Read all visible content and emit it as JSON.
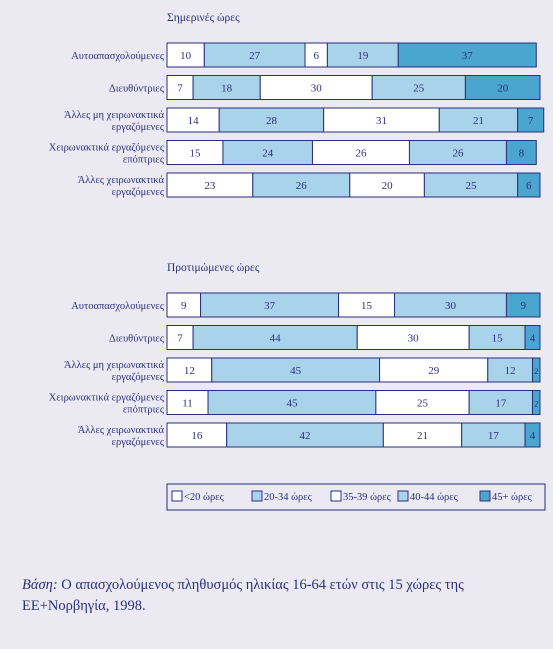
{
  "chart_data": [
    {
      "type": "bar",
      "stacked": true,
      "orientation": "horizontal",
      "title": "Σημερινές ώρες",
      "categories": [
        "Αυτοαπασχολούμενες",
        "Διευθύντριες",
        "Άλλες μη χειρωνακτικά εργαζόμενες",
        "Χειρωνακτικά εργαζόμενες επόπτριες",
        "Άλλες χειρωνακτικά εργαζόμενες"
      ],
      "series": [
        {
          "name": "<20 ώρες",
          "values": [
            10,
            7,
            14,
            15,
            23
          ]
        },
        {
          "name": "20-34 ώρες",
          "values": [
            27,
            18,
            28,
            24,
            26
          ]
        },
        {
          "name": "35-39 ώρες",
          "values": [
            6,
            30,
            31,
            26,
            20
          ]
        },
        {
          "name": "40-44 ώρες",
          "values": [
            19,
            25,
            21,
            26,
            25
          ]
        },
        {
          "name": "45+ ώρες",
          "values": [
            37,
            20,
            7,
            8,
            6
          ]
        }
      ],
      "xlim": [
        0,
        100
      ]
    },
    {
      "type": "bar",
      "stacked": true,
      "orientation": "horizontal",
      "title": "Προτιμώμενες ώρες",
      "categories": [
        "Αυτοαπασχολούμενες",
        "Διευθύντριες",
        "Άλλες μη χειρωνακτικά εργαζόμενες",
        "Χειρωνακτικά εργαζόμενες επόπτριες",
        "Άλλες χειρωνακτικά εργαζόμενες"
      ],
      "series": [
        {
          "name": "<20 ώρες",
          "values": [
            9,
            7,
            12,
            11,
            16
          ]
        },
        {
          "name": "20-34 ώρες",
          "values": [
            37,
            44,
            45,
            45,
            42
          ]
        },
        {
          "name": "35-39 ώρες",
          "values": [
            15,
            30,
            29,
            25,
            21
          ]
        },
        {
          "name": "40-44 ώρες",
          "values": [
            30,
            15,
            12,
            17,
            17
          ]
        },
        {
          "name": "45+ ώρες",
          "values": [
            9,
            4,
            2,
            2,
            4
          ]
        }
      ],
      "xlim": [
        0,
        100
      ]
    }
  ],
  "legend": {
    "placement": "bottom",
    "items": [
      "<20 ώρες",
      "20-34 ώρες",
      "35-39 ώρες",
      "40-44 ώρες",
      "45+ ώρες"
    ]
  },
  "colors": {
    "segments": [
      "#ffffff",
      "#a9d3ea",
      "#ffffff",
      "#a9d3ea",
      "#4aa6cf"
    ],
    "border": "#2a2f7a",
    "text": "#2a2f7a",
    "background": "#ebe9f1"
  },
  "note": {
    "label": "Βάση:",
    "text": "Ο απασχολούμενος πληθυσμός ηλικίας 16-64 ετών στις 15 χώρες της ΕΕ+Νορβηγία, 1998."
  }
}
